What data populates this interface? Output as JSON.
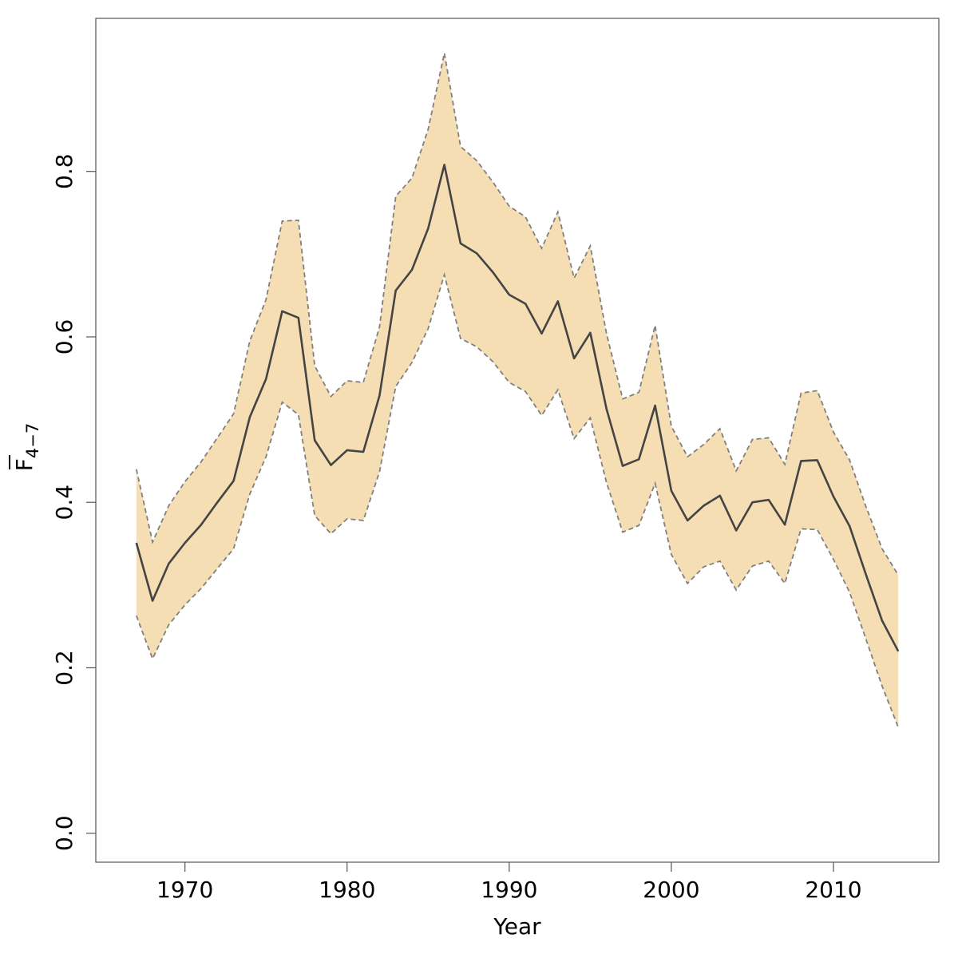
{
  "chart_data": {
    "type": "area",
    "xlabel": "Year",
    "ylabel": {
      "main": "F",
      "subscript": "4−7"
    },
    "xlim": [
      1964.5,
      2016.5
    ],
    "ylim": [
      -0.035,
      0.985
    ],
    "x_ticks": [
      1970,
      1980,
      1990,
      2000,
      2010
    ],
    "y_ticks": [
      "0.0",
      "0.2",
      "0.4",
      "0.6",
      "0.8"
    ],
    "grid": false,
    "colors": {
      "band_fill": "#F5DEB3",
      "band_edge": "#808080",
      "line": "#444444",
      "frame": "#555555"
    },
    "x": [
      1967,
      1968,
      1969,
      1970,
      1971,
      1972,
      1973,
      1974,
      1975,
      1976,
      1977,
      1978,
      1979,
      1980,
      1981,
      1982,
      1983,
      1984,
      1985,
      1986,
      1987,
      1988,
      1989,
      1990,
      1991,
      1992,
      1993,
      1994,
      1995,
      1996,
      1997,
      1998,
      1999,
      2000,
      2001,
      2002,
      2003,
      2004,
      2005,
      2006,
      2007,
      2008,
      2009,
      2010,
      2011,
      2012,
      2013,
      2014
    ],
    "series": [
      {
        "role": "estimate",
        "values": [
          0.351,
          0.281,
          0.326,
          0.351,
          0.373,
          0.4,
          0.426,
          0.503,
          0.549,
          0.631,
          0.623,
          0.475,
          0.445,
          0.463,
          0.461,
          0.529,
          0.656,
          0.681,
          0.731,
          0.808,
          0.713,
          0.701,
          0.678,
          0.651,
          0.64,
          0.604,
          0.643,
          0.574,
          0.605,
          0.513,
          0.444,
          0.452,
          0.517,
          0.414,
          0.378,
          0.396,
          0.408,
          0.366,
          0.4,
          0.403,
          0.373,
          0.45,
          0.451,
          0.407,
          0.371,
          0.313,
          0.257,
          0.22
        ]
      },
      {
        "role": "lower",
        "values": [
          0.263,
          0.211,
          0.252,
          0.276,
          0.296,
          0.32,
          0.344,
          0.41,
          0.455,
          0.521,
          0.506,
          0.384,
          0.362,
          0.38,
          0.378,
          0.437,
          0.54,
          0.569,
          0.61,
          0.675,
          0.598,
          0.588,
          0.57,
          0.545,
          0.534,
          0.505,
          0.536,
          0.477,
          0.502,
          0.424,
          0.364,
          0.372,
          0.423,
          0.337,
          0.302,
          0.322,
          0.329,
          0.294,
          0.323,
          0.329,
          0.302,
          0.368,
          0.367,
          0.331,
          0.291,
          0.235,
          0.178,
          0.128
        ]
      },
      {
        "role": "upper",
        "values": [
          0.44,
          0.352,
          0.396,
          0.425,
          0.449,
          0.478,
          0.507,
          0.595,
          0.645,
          0.74,
          0.741,
          0.565,
          0.528,
          0.547,
          0.545,
          0.612,
          0.77,
          0.792,
          0.851,
          0.943,
          0.83,
          0.813,
          0.787,
          0.758,
          0.745,
          0.707,
          0.751,
          0.671,
          0.71,
          0.604,
          0.525,
          0.533,
          0.614,
          0.492,
          0.455,
          0.47,
          0.489,
          0.438,
          0.476,
          0.478,
          0.446,
          0.532,
          0.535,
          0.485,
          0.451,
          0.395,
          0.344,
          0.312
        ]
      }
    ]
  }
}
